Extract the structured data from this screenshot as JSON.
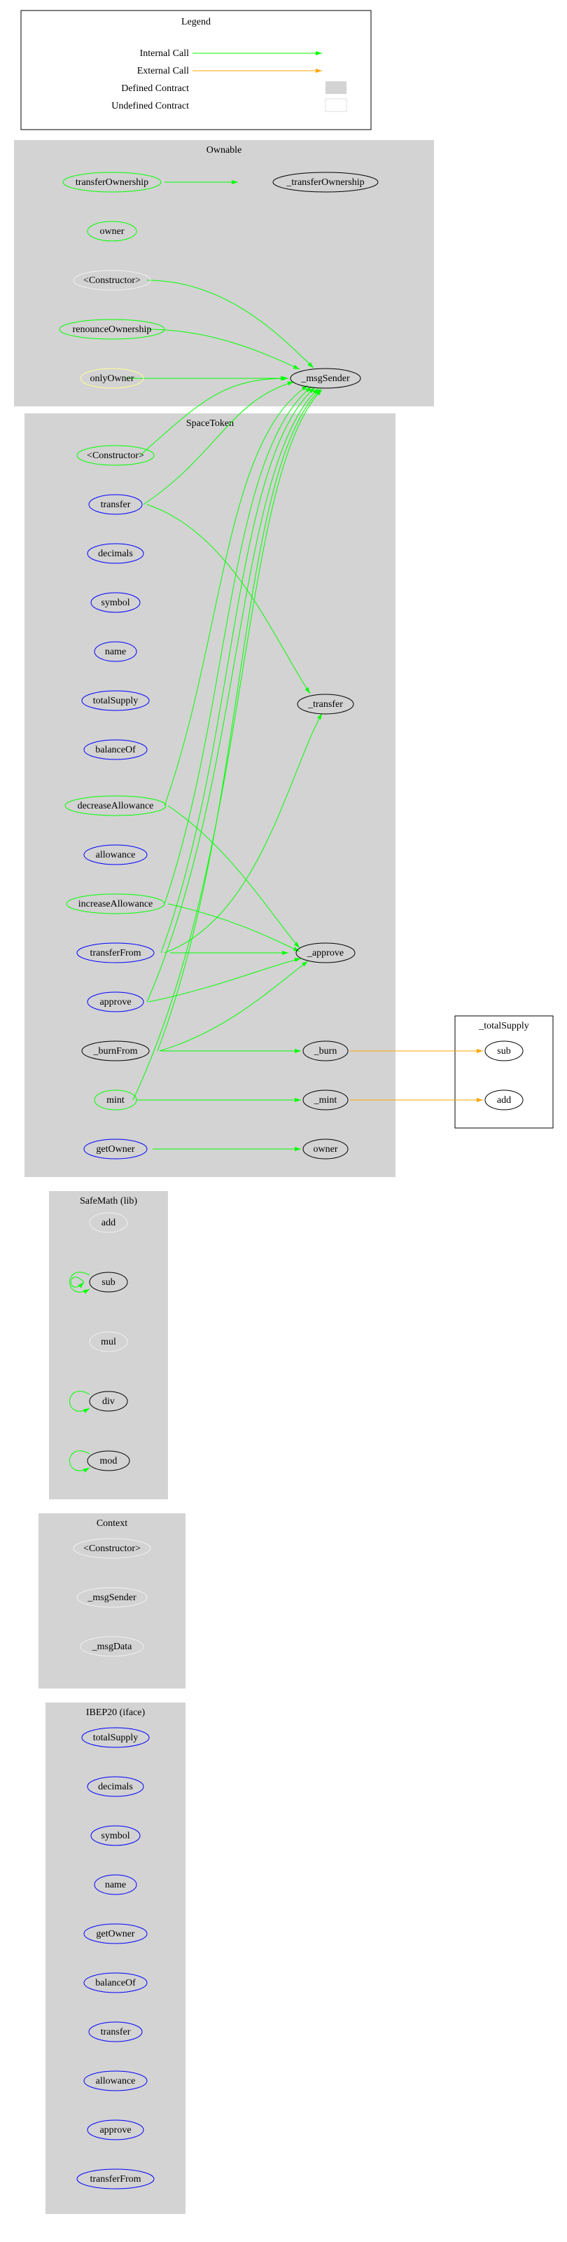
{
  "legend": {
    "title": "Legend",
    "items": [
      {
        "label": "Internal Call",
        "type": "line",
        "color": "#00ff00"
      },
      {
        "label": "External Call",
        "type": "line",
        "color": "#ffa500"
      },
      {
        "label": "Defined Contract",
        "type": "box",
        "fill": "#d3d3d3"
      },
      {
        "label": "Undefined Contract",
        "type": "box",
        "fill": "#ffffff"
      }
    ]
  },
  "clusters": {
    "ownable": {
      "title": "Ownable",
      "defined": true
    },
    "spacetoken": {
      "title": "SpaceToken",
      "defined": true
    },
    "safemath": {
      "title": "SafeMath  (lib)",
      "defined": true
    },
    "context": {
      "title": "Context",
      "defined": true
    },
    "ibep20": {
      "title": "IBEP20  (iface)",
      "defined": true
    },
    "totalsupply": {
      "title": "_totalSupply",
      "defined": false
    }
  },
  "nodes": {
    "own_transferOwnership": {
      "label": "transferOwnership",
      "stroke": "#00ff00",
      "fill": "none"
    },
    "own__transferOwnership": {
      "label": "_transferOwnership",
      "stroke": "#000000",
      "fill": "none"
    },
    "own_owner": {
      "label": "owner",
      "stroke": "#00ff00",
      "fill": "none"
    },
    "own_constructor": {
      "label": "<Constructor>",
      "stroke": "#f0f0f0",
      "fill": "none"
    },
    "own_renounce": {
      "label": "renounceOwnership",
      "stroke": "#00ff00",
      "fill": "none"
    },
    "own_onlyOwner": {
      "label": "onlyOwner",
      "stroke": "#ffff99",
      "fill": "none"
    },
    "own_msgSender": {
      "label": "_msgSender",
      "stroke": "#000000",
      "fill": "none"
    },
    "st_constructor": {
      "label": "<Constructor>",
      "stroke": "#00ff00",
      "fill": "none"
    },
    "st_transfer": {
      "label": "transfer",
      "stroke": "#0000ff",
      "fill": "none"
    },
    "st_decimals": {
      "label": "decimals",
      "stroke": "#0000ff",
      "fill": "none"
    },
    "st_symbol": {
      "label": "symbol",
      "stroke": "#0000ff",
      "fill": "none"
    },
    "st_name": {
      "label": "name",
      "stroke": "#0000ff",
      "fill": "none"
    },
    "st_totalSupply": {
      "label": "totalSupply",
      "stroke": "#0000ff",
      "fill": "none"
    },
    "st_balanceOf": {
      "label": "balanceOf",
      "stroke": "#0000ff",
      "fill": "none"
    },
    "st_decreaseAllowance": {
      "label": "decreaseAllowance",
      "stroke": "#00ff00",
      "fill": "none"
    },
    "st_allowance": {
      "label": "allowance",
      "stroke": "#0000ff",
      "fill": "none"
    },
    "st_increaseAllowance": {
      "label": "increaseAllowance",
      "stroke": "#00ff00",
      "fill": "none"
    },
    "st_transferFrom": {
      "label": "transferFrom",
      "stroke": "#0000ff",
      "fill": "none"
    },
    "st_approve": {
      "label": "approve",
      "stroke": "#0000ff",
      "fill": "none"
    },
    "st__burnFrom": {
      "label": "_burnFrom",
      "stroke": "#000000",
      "fill": "none"
    },
    "st_mint": {
      "label": "mint",
      "stroke": "#00ff00",
      "fill": "none"
    },
    "st_getOwner": {
      "label": "getOwner",
      "stroke": "#0000ff",
      "fill": "none"
    },
    "st__transfer": {
      "label": "_transfer",
      "stroke": "#000000",
      "fill": "none"
    },
    "st__approve": {
      "label": "_approve",
      "stroke": "#000000",
      "fill": "none"
    },
    "st__burn": {
      "label": "_burn",
      "stroke": "#000000",
      "fill": "none"
    },
    "st__mint": {
      "label": "_mint",
      "stroke": "#000000",
      "fill": "none"
    },
    "st_owner": {
      "label": "owner",
      "stroke": "#000000",
      "fill": "none"
    },
    "ts_sub": {
      "label": "sub",
      "stroke": "#000000",
      "fill": "none"
    },
    "ts_add": {
      "label": "add",
      "stroke": "#000000",
      "fill": "none"
    },
    "sm_add": {
      "label": "add",
      "stroke": "#f0f0f0",
      "fill": "none"
    },
    "sm_sub": {
      "label": "sub",
      "stroke": "#000000",
      "fill": "none"
    },
    "sm_mul": {
      "label": "mul",
      "stroke": "#f0f0f0",
      "fill": "none"
    },
    "sm_div": {
      "label": "div",
      "stroke": "#000000",
      "fill": "none"
    },
    "sm_mod": {
      "label": "mod",
      "stroke": "#000000",
      "fill": "none"
    },
    "ctx_constructor": {
      "label": "<Constructor>",
      "stroke": "#f0f0f0",
      "fill": "none"
    },
    "ctx_msgSender": {
      "label": "_msgSender",
      "stroke": "#f0f0f0",
      "fill": "none"
    },
    "ctx_msgData": {
      "label": "_msgData",
      "stroke": "#f0f0f0",
      "fill": "none"
    },
    "ib_totalSupply": {
      "label": "totalSupply",
      "stroke": "#0000ff",
      "fill": "none"
    },
    "ib_decimals": {
      "label": "decimals",
      "stroke": "#0000ff",
      "fill": "none"
    },
    "ib_symbol": {
      "label": "symbol",
      "stroke": "#0000ff",
      "fill": "none"
    },
    "ib_name": {
      "label": "name",
      "stroke": "#0000ff",
      "fill": "none"
    },
    "ib_getOwner": {
      "label": "getOwner",
      "stroke": "#0000ff",
      "fill": "none"
    },
    "ib_balanceOf": {
      "label": "balanceOf",
      "stroke": "#0000ff",
      "fill": "none"
    },
    "ib_transfer": {
      "label": "transfer",
      "stroke": "#0000ff",
      "fill": "none"
    },
    "ib_allowance": {
      "label": "allowance",
      "stroke": "#0000ff",
      "fill": "none"
    },
    "ib_approve": {
      "label": "approve",
      "stroke": "#0000ff",
      "fill": "none"
    },
    "ib_transferFrom": {
      "label": "transferFrom",
      "stroke": "#0000ff",
      "fill": "none"
    }
  },
  "layout": {
    "node_rx": 55,
    "node_ry": 14,
    "colors": {
      "internal": "#00ff00",
      "external": "#ffa500"
    }
  }
}
